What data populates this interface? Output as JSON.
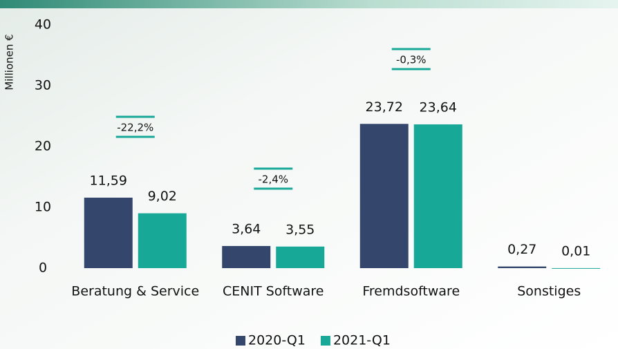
{
  "chart_data": {
    "type": "bar",
    "y_label": "Millionen €",
    "categories": [
      "Beratung & Service",
      "CENIT Software",
      "Fremdsoftware",
      "Sonstiges"
    ],
    "series": [
      {
        "name": "2020-Q1",
        "color": "#34466b",
        "values": [
          11.59,
          3.64,
          23.72,
          0.27
        ],
        "value_labels": [
          "11,59",
          "3,64",
          "23,72",
          "0,27"
        ]
      },
      {
        "name": "2021-Q1",
        "color": "#17a898",
        "values": [
          9.02,
          3.55,
          23.64,
          0.01
        ],
        "value_labels": [
          "9,02",
          "3,55",
          "23,64",
          "0,01"
        ]
      }
    ],
    "annotations": [
      "-22,2%",
      "-2,4%",
      "-0,3%"
    ],
    "ylim": [
      0,
      40
    ],
    "yticks": [
      0,
      10,
      20,
      30,
      40
    ],
    "grid": false,
    "legend": "bottom"
  }
}
